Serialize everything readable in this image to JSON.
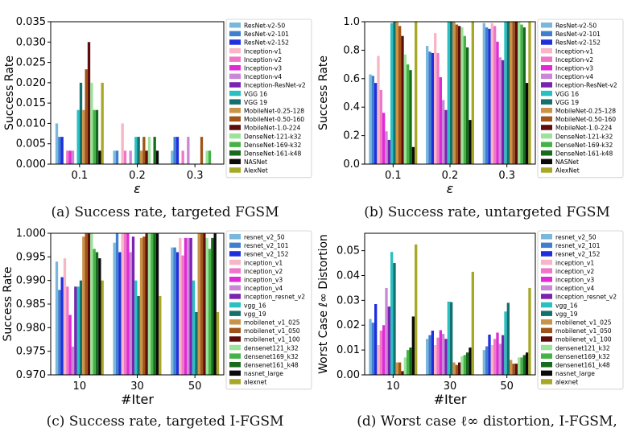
{
  "captions": [
    "(a) Success rate, targeted FGSM",
    "(b) Success rate, untargeted FGSM",
    "(c) Success rate, targeted I-FGSM",
    "(d) Worst case ℓ∞ distortion, I-FGSM,"
  ],
  "colors": [
    "#7ab7dd",
    "#3f7fce",
    "#1f2fe0",
    "#f7b6c6",
    "#f077c8",
    "#e02ad6",
    "#c987d6",
    "#7b23b0",
    "#28c0c2",
    "#13706d",
    "#c99348",
    "#a0541a",
    "#5e0c0c",
    "#9be39b",
    "#46b246",
    "#176b1d",
    "#0a0a0a",
    "#a8a828"
  ],
  "chart_data": [
    {
      "type": "bar",
      "title": "(a) Success rate, targeted FGSM",
      "ylabel": "Success Rate",
      "xlabel": "ε",
      "categories": [
        "0.1",
        "0.2",
        "0.3"
      ],
      "ylim": [
        0,
        0.035
      ],
      "yticks": [
        "0.000",
        "0.005",
        "0.010",
        "0.015",
        "0.020",
        "0.025",
        "0.030",
        "0.035"
      ],
      "series": [
        {
          "name": "ResNet-v2-50",
          "values": [
            0.01,
            0.0033,
            0.0033
          ]
        },
        {
          "name": "ResNet-v2-101",
          "values": [
            0.0067,
            0.0033,
            0.0067
          ]
        },
        {
          "name": "ResNet-v2-152",
          "values": [
            0.0067,
            0.0,
            0.0067
          ]
        },
        {
          "name": "Inception-v1",
          "values": [
            0.0,
            0.01,
            0.0
          ]
        },
        {
          "name": "Inception-v2",
          "values": [
            0.0033,
            0.0033,
            0.0033
          ]
        },
        {
          "name": "Inception-v3",
          "values": [
            0.0033,
            0.0,
            0.0
          ]
        },
        {
          "name": "Inception-v4",
          "values": [
            0.0033,
            0.0033,
            0.0067
          ]
        },
        {
          "name": "Inception-ResNet-v2",
          "values": [
            0.0,
            0.0,
            0.0
          ]
        },
        {
          "name": "VGG 16",
          "values": [
            0.0133,
            0.0067,
            0.0
          ]
        },
        {
          "name": "VGG 19",
          "values": [
            0.02,
            0.0067,
            0.0
          ]
        },
        {
          "name": "MobileNet-0.25-128",
          "values": [
            0.0133,
            0.0033,
            0.0
          ]
        },
        {
          "name": "MobileNet-0.50-160",
          "values": [
            0.0233,
            0.0067,
            0.0067
          ]
        },
        {
          "name": "MobileNet-1.0-224",
          "values": [
            0.03,
            0.0033,
            0.0
          ]
        },
        {
          "name": "DenseNet-121-k32",
          "values": [
            0.02,
            0.0067,
            0.0033
          ]
        },
        {
          "name": "DenseNet-169-k32",
          "values": [
            0.0133,
            0.0,
            0.0033
          ]
        },
        {
          "name": "DenseNet-161-k48",
          "values": [
            0.0133,
            0.0067,
            0.0
          ]
        },
        {
          "name": "NASNet",
          "values": [
            0.0033,
            0.0033,
            0.0
          ]
        },
        {
          "name": "AlexNet",
          "values": [
            0.02,
            0.0,
            0.0
          ]
        }
      ]
    },
    {
      "type": "bar",
      "title": "(b) Success rate, untargeted FGSM",
      "ylabel": "Success Rate",
      "xlabel": "ε",
      "categories": [
        "0.1",
        "0.2",
        "0.3"
      ],
      "ylim": [
        0,
        1.0
      ],
      "yticks": [
        "0.0",
        "0.2",
        "0.4",
        "0.6",
        "0.8",
        "1.0"
      ],
      "series": [
        {
          "name": "ResNet-v2-50",
          "values": [
            0.63,
            0.83,
            0.99
          ]
        },
        {
          "name": "ResNet-v2-101",
          "values": [
            0.62,
            0.79,
            0.96
          ]
        },
        {
          "name": "ResNet-v2-152",
          "values": [
            0.57,
            0.78,
            0.95
          ]
        },
        {
          "name": "Inception-v1",
          "values": [
            0.76,
            0.92,
            0.99
          ]
        },
        {
          "name": "Inception-v2",
          "values": [
            0.52,
            0.78,
            0.97
          ]
        },
        {
          "name": "Inception-v3",
          "values": [
            0.36,
            0.61,
            0.86
          ]
        },
        {
          "name": "Inception-v4",
          "values": [
            0.23,
            0.45,
            0.75
          ]
        },
        {
          "name": "Inception-ResNet-v2",
          "values": [
            0.17,
            0.38,
            0.73
          ]
        },
        {
          "name": "VGG 16",
          "values": [
            0.99,
            1.0,
            1.0
          ]
        },
        {
          "name": "VGG 19",
          "values": [
            1.0,
            1.0,
            1.0
          ]
        },
        {
          "name": "MobileNet-0.25-128",
          "values": [
            1.0,
            1.0,
            1.0
          ]
        },
        {
          "name": "MobileNet-0.50-160",
          "values": [
            0.97,
            0.98,
            1.0
          ]
        },
        {
          "name": "MobileNet-1.0-224",
          "values": [
            0.9,
            0.97,
            1.0
          ]
        },
        {
          "name": "DenseNet-121-k32",
          "values": [
            0.77,
            0.96,
            1.0
          ]
        },
        {
          "name": "DenseNet-169-k32",
          "values": [
            0.7,
            0.9,
            0.98
          ]
        },
        {
          "name": "DenseNet-161-k48",
          "values": [
            0.66,
            0.82,
            0.96
          ]
        },
        {
          "name": "NASNet",
          "values": [
            0.12,
            0.31,
            0.57
          ]
        },
        {
          "name": "AlexNet",
          "values": [
            1.0,
            1.0,
            1.0
          ]
        }
      ]
    },
    {
      "type": "bar",
      "title": "(c) Success rate, targeted I-FGSM",
      "ylabel": "Success Rate",
      "xlabel": "#Iter",
      "categories": [
        "10",
        "30",
        "50"
      ],
      "ylim": [
        0.97,
        1.0
      ],
      "yticks": [
        "0.970",
        "0.975",
        "0.980",
        "0.985",
        "0.990",
        "0.995",
        "1.000"
      ],
      "series": [
        {
          "name": "resnet_v2_50",
          "values": [
            0.994,
            0.998,
            0.997
          ]
        },
        {
          "name": "resnet_v2_101",
          "values": [
            0.988,
            1.0,
            0.997
          ]
        },
        {
          "name": "resnet_v2_152",
          "values": [
            0.9907,
            0.996,
            0.996
          ]
        },
        {
          "name": "inception_v1",
          "values": [
            0.9947,
            1.0,
            0.999
          ]
        },
        {
          "name": "inception_v2",
          "values": [
            0.9887,
            1.0,
            0.9953
          ]
        },
        {
          "name": "inception_v3",
          "values": [
            0.9827,
            1.0,
            0.999
          ]
        },
        {
          "name": "inception_v4",
          "values": [
            0.976,
            0.996,
            0.999
          ]
        },
        {
          "name": "inception_resnet_v2",
          "values": [
            0.9887,
            0.9993,
            0.999
          ]
        },
        {
          "name": "vgg_16",
          "values": [
            0.9887,
            0.99,
            0.99
          ]
        },
        {
          "name": "vgg_19",
          "values": [
            0.99,
            0.9867,
            0.9833
          ]
        },
        {
          "name": "mobilenet_v1_025",
          "values": [
            0.9993,
            0.999,
            1.0
          ]
        },
        {
          "name": "mobilenet_v1_050",
          "values": [
            1.0,
            0.9993,
            1.0
          ]
        },
        {
          "name": "mobilenet_v1_100",
          "values": [
            1.0,
            1.0,
            1.0
          ]
        },
        {
          "name": "densenet121_k32",
          "values": [
            1.0,
            1.0,
            0.999
          ]
        },
        {
          "name": "densenet169_k32",
          "values": [
            0.9967,
            1.0,
            0.9967
          ]
        },
        {
          "name": "densenet161_k48",
          "values": [
            0.996,
            1.0,
            0.999
          ]
        },
        {
          "name": "nasnet_large",
          "values": [
            0.9947,
            1.0,
            1.0
          ]
        },
        {
          "name": "alexnet",
          "values": [
            0.99,
            0.9867,
            0.9833
          ]
        }
      ]
    },
    {
      "type": "bar",
      "title": "(d) Worst case ℓ∞ distortion, I-FGSM,",
      "ylabel": "Worst Case ℓ∞ Distortion",
      "xlabel": "#Iter",
      "categories": [
        "10",
        "30",
        "50"
      ],
      "ylim": [
        0,
        0.057
      ],
      "yticks": [
        "0.00",
        "0.01",
        "0.02",
        "0.03",
        "0.04",
        "0.05"
      ],
      "series": [
        {
          "name": "resnet_v2_50",
          "values": [
            0.0225,
            0.0145,
            0.01
          ]
        },
        {
          "name": "resnet_v2_101",
          "values": [
            0.021,
            0.016,
            0.0115
          ]
        },
        {
          "name": "resnet_v2_152",
          "values": [
            0.0285,
            0.0178,
            0.0162
          ]
        },
        {
          "name": "inception_v1",
          "values": [
            0.012,
            0.012,
            0.012
          ]
        },
        {
          "name": "inception_v2",
          "values": [
            0.0178,
            0.015,
            0.0145
          ]
        },
        {
          "name": "inception_v3",
          "values": [
            0.02,
            0.018,
            0.017
          ]
        },
        {
          "name": "inception_v4",
          "values": [
            0.035,
            0.0165,
            0.0125
          ]
        },
        {
          "name": "inception_resnet_v2",
          "values": [
            0.0275,
            0.0145,
            0.016
          ]
        },
        {
          "name": "vgg_16",
          "values": [
            0.0495,
            0.0295,
            0.0255
          ]
        },
        {
          "name": "vgg_19",
          "values": [
            0.045,
            0.0293,
            0.029
          ]
        },
        {
          "name": "mobilenet_v1_025",
          "values": [
            0.005,
            0.005,
            0.006
          ]
        },
        {
          "name": "mobilenet_v1_050",
          "values": [
            0.005,
            0.004,
            0.0045
          ]
        },
        {
          "name": "mobilenet_v1_100",
          "values": [
            0.0015,
            0.005,
            0.0045
          ]
        },
        {
          "name": "densenet121_k32",
          "values": [
            0.007,
            0.0075,
            0.007
          ]
        },
        {
          "name": "densenet169_k32",
          "values": [
            0.01,
            0.008,
            0.007
          ]
        },
        {
          "name": "densenet161_k48",
          "values": [
            0.011,
            0.009,
            0.008
          ]
        },
        {
          "name": "nasnet_large",
          "values": [
            0.0235,
            0.011,
            0.009
          ]
        },
        {
          "name": "alexnet",
          "values": [
            0.0525,
            0.0415,
            0.035
          ]
        }
      ]
    }
  ]
}
